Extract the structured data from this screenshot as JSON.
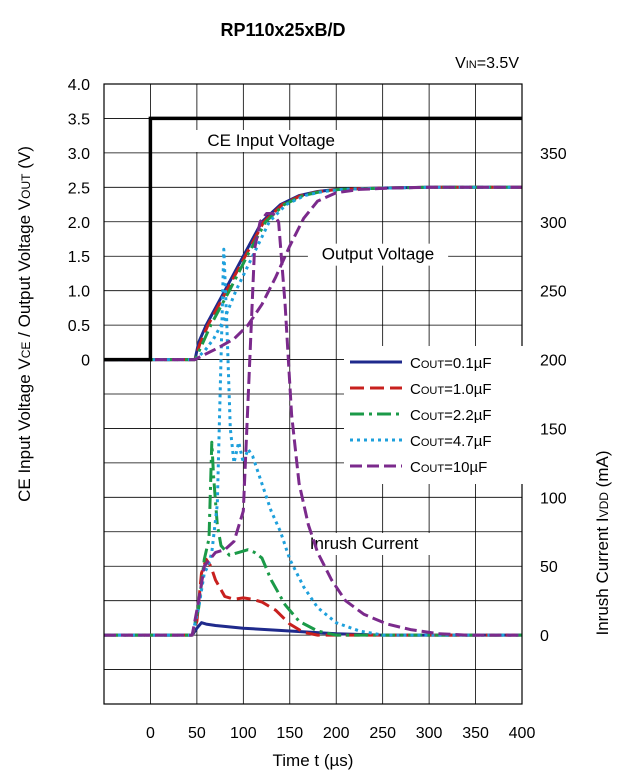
{
  "chart_data": {
    "type": "line",
    "title": "RP110x25xB/D",
    "condition": {
      "prefix": "V",
      "sub": "IN",
      "value": "=3.5V"
    },
    "xlabel": "Time t (µs)",
    "ylabel_left": {
      "parts": [
        {
          "t": "CE Input Voltage V",
          "sub": false
        },
        {
          "t": "CE",
          "sub": true
        },
        {
          "t": " / Output Voltage V",
          "sub": false
        },
        {
          "t": "OUT",
          "sub": true
        },
        {
          "t": " (V)",
          "sub": false
        }
      ]
    },
    "ylabel_right": {
      "parts": [
        {
          "t": "Inrush Current I",
          "sub": false
        },
        {
          "t": "VDD",
          "sub": true
        },
        {
          "t": " (mA)",
          "sub": false
        }
      ]
    },
    "x_range": [
      -50,
      400
    ],
    "x_ticks": [
      0,
      50,
      100,
      150,
      200,
      250,
      300,
      350,
      400
    ],
    "x_tick_labels": [
      "0",
      "50",
      "100",
      "150",
      "200",
      "250",
      "300",
      "350",
      "400"
    ],
    "voltage_range": [
      -5.0,
      4.0
    ],
    "voltage_ticks": [
      0,
      0.5,
      1.0,
      1.5,
      2.0,
      2.5,
      3.0,
      3.5,
      4.0
    ],
    "voltage_tick_labels": [
      "0",
      "0.5",
      "1.0",
      "1.5",
      "2.0",
      "2.5",
      "3.0",
      "3.5",
      "4.0"
    ],
    "current_range": [
      -50,
      400
    ],
    "current_ticks": [
      0,
      50,
      100,
      150,
      200,
      250,
      300,
      350
    ],
    "current_tick_labels": [
      "0",
      "50",
      "100",
      "150",
      "200",
      "250",
      "300",
      "350"
    ],
    "grid": true,
    "legend_position": "middle-right",
    "annotations": [
      {
        "text": "CE Input Voltage",
        "x": 130,
        "y_v": 3.1
      },
      {
        "text": "Output Voltage",
        "x": 245,
        "y_v": 1.45
      },
      {
        "text": "Inrush Current",
        "x": 230,
        "y_v": -2.75
      }
    ],
    "ce_input": {
      "name": "CE Input Voltage",
      "color": "#000000",
      "points": [
        [
          -50,
          0
        ],
        [
          0,
          0
        ],
        [
          0,
          3.5
        ],
        [
          400,
          3.5
        ]
      ]
    },
    "series": [
      {
        "name": "C",
        "name_sub": "OUT",
        "name_value": "=0.1µF",
        "color": "#1f2a8c",
        "dash": "",
        "voltage": [
          [
            -50,
            0
          ],
          [
            48,
            0
          ],
          [
            52,
            0.25
          ],
          [
            60,
            0.5
          ],
          [
            80,
            1.0
          ],
          [
            100,
            1.5
          ],
          [
            120,
            2.0
          ],
          [
            140,
            2.25
          ],
          [
            160,
            2.38
          ],
          [
            180,
            2.44
          ],
          [
            200,
            2.47
          ],
          [
            250,
            2.49
          ],
          [
            300,
            2.5
          ],
          [
            400,
            2.5
          ]
        ],
        "current": [
          [
            -50,
            0
          ],
          [
            45,
            0
          ],
          [
            50,
            5
          ],
          [
            55,
            9
          ],
          [
            60,
            8
          ],
          [
            70,
            7
          ],
          [
            100,
            5
          ],
          [
            150,
            3
          ],
          [
            200,
            1
          ],
          [
            250,
            0
          ],
          [
            400,
            0
          ]
        ]
      },
      {
        "name": "C",
        "name_sub": "OUT",
        "name_value": "=1.0µF",
        "color": "#c8201e",
        "dash": "14 6",
        "voltage": [
          [
            -50,
            0
          ],
          [
            48,
            0
          ],
          [
            53,
            0.22
          ],
          [
            62,
            0.5
          ],
          [
            82,
            1.0
          ],
          [
            102,
            1.5
          ],
          [
            122,
            2.0
          ],
          [
            142,
            2.25
          ],
          [
            162,
            2.38
          ],
          [
            182,
            2.44
          ],
          [
            202,
            2.47
          ],
          [
            252,
            2.49
          ],
          [
            300,
            2.5
          ],
          [
            400,
            2.5
          ]
        ],
        "current": [
          [
            -50,
            0
          ],
          [
            45,
            0
          ],
          [
            50,
            10
          ],
          [
            55,
            45
          ],
          [
            60,
            55
          ],
          [
            65,
            50
          ],
          [
            70,
            40
          ],
          [
            80,
            28
          ],
          [
            90,
            26
          ],
          [
            100,
            27
          ],
          [
            110,
            26
          ],
          [
            120,
            24
          ],
          [
            135,
            18
          ],
          [
            150,
            8
          ],
          [
            165,
            2
          ],
          [
            180,
            0
          ],
          [
            400,
            0
          ]
        ]
      },
      {
        "name": "C",
        "name_sub": "OUT",
        "name_value": "=2.2µF",
        "color": "#1b9a48",
        "dash": "14 5 3 5",
        "voltage": [
          [
            -50,
            0
          ],
          [
            48,
            0
          ],
          [
            55,
            0.2
          ],
          [
            65,
            0.5
          ],
          [
            85,
            1.0
          ],
          [
            104,
            1.5
          ],
          [
            124,
            2.0
          ],
          [
            144,
            2.25
          ],
          [
            164,
            2.38
          ],
          [
            184,
            2.44
          ],
          [
            204,
            2.47
          ],
          [
            254,
            2.49
          ],
          [
            300,
            2.5
          ],
          [
            400,
            2.5
          ]
        ],
        "current": [
          [
            -50,
            0
          ],
          [
            45,
            0
          ],
          [
            52,
            20
          ],
          [
            58,
            55
          ],
          [
            63,
            70
          ],
          [
            66,
            140
          ],
          [
            68,
            115
          ],
          [
            72,
            80
          ],
          [
            76,
            65
          ],
          [
            85,
            58
          ],
          [
            95,
            60
          ],
          [
            105,
            62
          ],
          [
            112,
            60
          ],
          [
            120,
            56
          ],
          [
            130,
            40
          ],
          [
            145,
            22
          ],
          [
            160,
            10
          ],
          [
            180,
            3
          ],
          [
            200,
            0
          ],
          [
            400,
            0
          ]
        ]
      },
      {
        "name": "C",
        "name_sub": "OUT",
        "name_value": "=4.7µF",
        "color": "#1ea0dc",
        "dash": "3 4",
        "voltage": [
          [
            -50,
            0
          ],
          [
            48,
            0
          ],
          [
            58,
            0.12
          ],
          [
            68,
            0.3
          ],
          [
            80,
            0.6
          ],
          [
            92,
            1.0
          ],
          [
            110,
            1.5
          ],
          [
            128,
            2.0
          ],
          [
            146,
            2.25
          ],
          [
            166,
            2.38
          ],
          [
            186,
            2.44
          ],
          [
            206,
            2.47
          ],
          [
            256,
            2.49
          ],
          [
            300,
            2.5
          ],
          [
            400,
            2.5
          ]
        ],
        "current": [
          [
            -50,
            0
          ],
          [
            45,
            0
          ],
          [
            52,
            20
          ],
          [
            58,
            45
          ],
          [
            62,
            50
          ],
          [
            66,
            60
          ],
          [
            72,
            95
          ],
          [
            76,
            200
          ],
          [
            79,
            280
          ],
          [
            82,
            230
          ],
          [
            86,
            150
          ],
          [
            90,
            125
          ],
          [
            95,
            140
          ],
          [
            100,
            125
          ],
          [
            105,
            135
          ],
          [
            110,
            130
          ],
          [
            120,
            110
          ],
          [
            130,
            90
          ],
          [
            140,
            75
          ],
          [
            150,
            55
          ],
          [
            165,
            35
          ],
          [
            180,
            20
          ],
          [
            200,
            9
          ],
          [
            225,
            3
          ],
          [
            250,
            0
          ],
          [
            400,
            0
          ]
        ]
      },
      {
        "name": "C",
        "name_sub": "OUT",
        "name_value": "=10µF",
        "color": "#7b2a8c",
        "dash": "12 5",
        "voltage": [
          [
            -50,
            0
          ],
          [
            48,
            0
          ],
          [
            55,
            0.05
          ],
          [
            70,
            0.15
          ],
          [
            90,
            0.3
          ],
          [
            105,
            0.5
          ],
          [
            120,
            0.8
          ],
          [
            135,
            1.2
          ],
          [
            150,
            1.65
          ],
          [
            165,
            2.05
          ],
          [
            180,
            2.3
          ],
          [
            200,
            2.42
          ],
          [
            225,
            2.47
          ],
          [
            260,
            2.49
          ],
          [
            300,
            2.5
          ],
          [
            400,
            2.5
          ]
        ],
        "current": [
          [
            -50,
            0
          ],
          [
            45,
            0
          ],
          [
            52,
            25
          ],
          [
            58,
            50
          ],
          [
            64,
            55
          ],
          [
            70,
            60
          ],
          [
            80,
            62
          ],
          [
            90,
            68
          ],
          [
            100,
            90
          ],
          [
            107,
            200
          ],
          [
            112,
            280
          ],
          [
            118,
            300
          ],
          [
            125,
            306
          ],
          [
            132,
            306
          ],
          [
            138,
            300
          ],
          [
            145,
            240
          ],
          [
            152,
            160
          ],
          [
            160,
            110
          ],
          [
            170,
            80
          ],
          [
            180,
            60
          ],
          [
            195,
            40
          ],
          [
            210,
            25
          ],
          [
            230,
            15
          ],
          [
            255,
            8
          ],
          [
            280,
            4
          ],
          [
            310,
            1
          ],
          [
            340,
            0
          ],
          [
            400,
            0
          ]
        ]
      }
    ]
  }
}
